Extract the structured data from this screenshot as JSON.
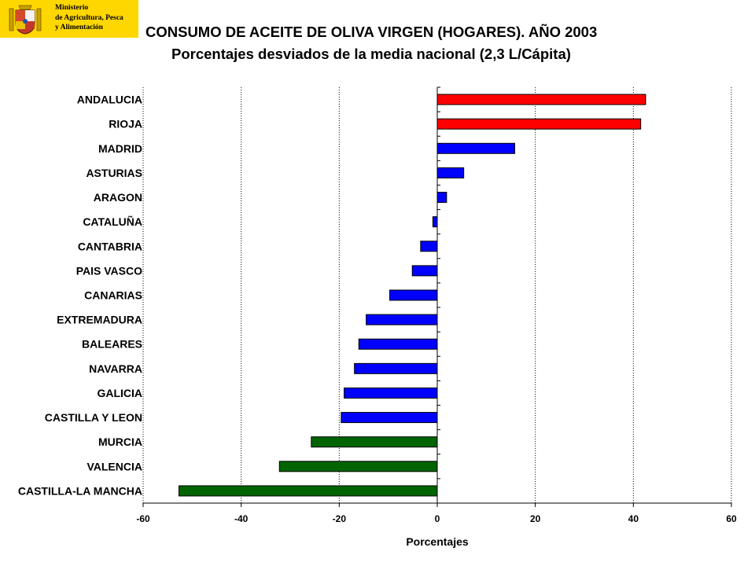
{
  "header": {
    "ministry_lines": [
      "Ministerio",
      "de Agricultura, Pesca",
      "y Alimentación"
    ]
  },
  "chart_data": {
    "type": "bar",
    "orientation": "horizontal",
    "title": "CONSUMO DE ACEITE DE OLIVA VIRGEN (HOGARES). AÑO 2003",
    "subtitle": "Porcentajes desviados de la media nacional (2,3  L/Cápita)",
    "xlabel": "Porcentajes",
    "ylabel": "",
    "xlim": [
      -60,
      60
    ],
    "xticks": [
      -60,
      -40,
      -20,
      0,
      20,
      40,
      60
    ],
    "grid": "vertical-dotted",
    "categories": [
      "ANDALUCIA",
      "RIOJA",
      "MADRID",
      "ASTURIAS",
      "ARAGON",
      "CATALUÑA",
      "CANTABRIA",
      "PAIS VASCO",
      "CANARIAS",
      "EXTREMADURA",
      "BALEARES",
      "NAVARRA",
      "GALICIA",
      "CASTILLA Y LEON",
      "MURCIA",
      "VALENCIA",
      "CASTILLA-LA MANCHA"
    ],
    "values": [
      42.5,
      41.5,
      15.8,
      5.4,
      1.9,
      -0.9,
      -3.4,
      -5.1,
      -9.7,
      -14.5,
      -16.0,
      -16.9,
      -19.0,
      -19.6,
      -25.7,
      -32.2,
      -52.7
    ],
    "colors": [
      "#ff0000",
      "#ff0000",
      "#0000ff",
      "#0000ff",
      "#0000ff",
      "#0000ff",
      "#0000ff",
      "#0000ff",
      "#0000ff",
      "#0000ff",
      "#0000ff",
      "#0000ff",
      "#0000ff",
      "#0000ff",
      "#006400",
      "#006400",
      "#006400"
    ]
  }
}
